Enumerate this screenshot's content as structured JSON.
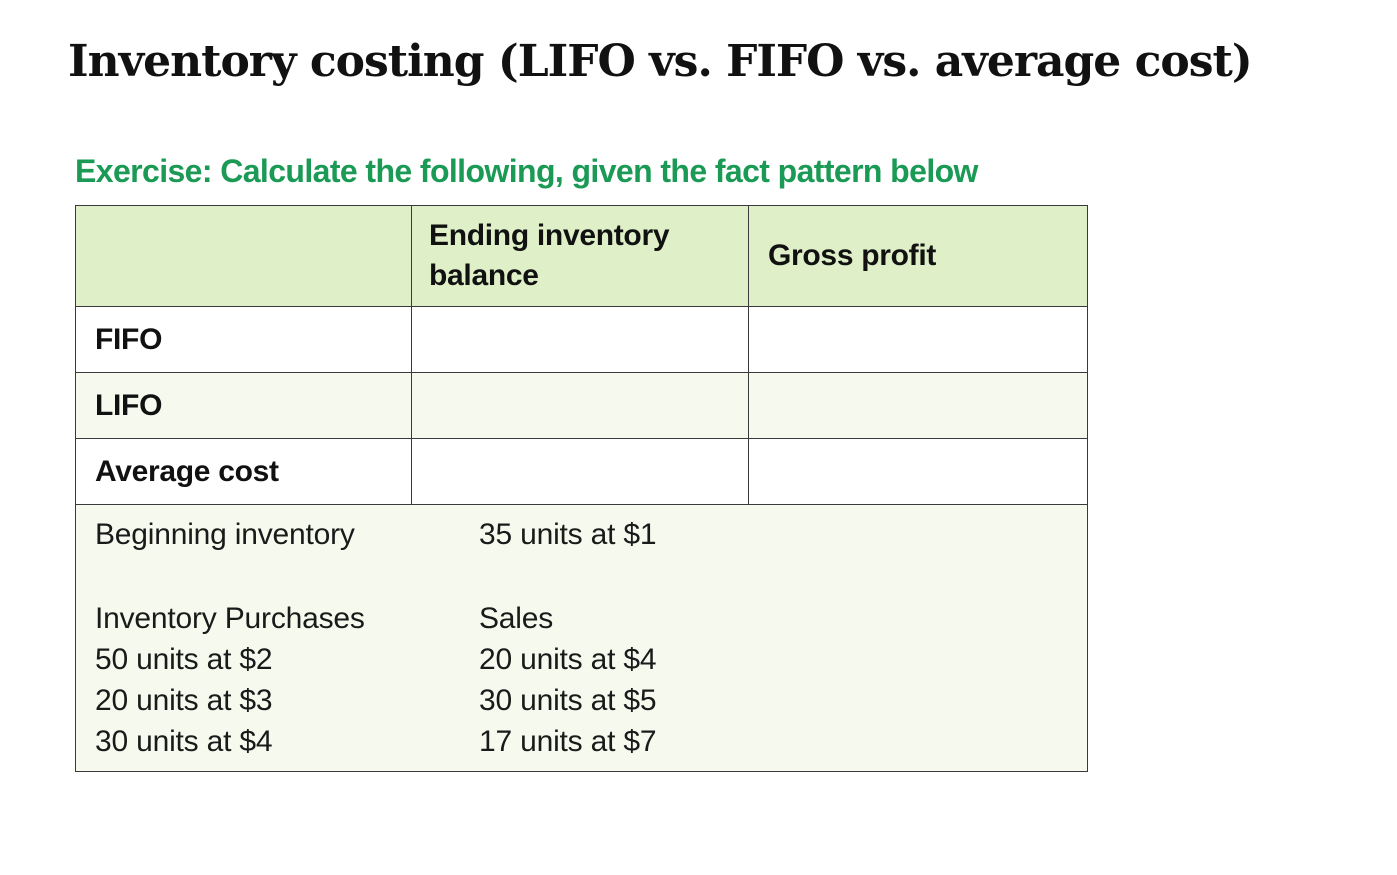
{
  "title": "Inventory costing (LIFO vs. FIFO vs. average cost)",
  "exercise_heading": "Exercise: Calculate the following, given the fact pattern below",
  "colors": {
    "heading_green": "#1a9a55",
    "header_fill": "#dff0c8",
    "alt_row_fill": "#f5f9ee",
    "border": "#3a3a3a"
  },
  "table": {
    "headers": {
      "first": "",
      "ending_inventory_line1": "Ending inventory",
      "ending_inventory_line2": "balance",
      "gross_profit": "Gross profit"
    },
    "rows": [
      {
        "label": "FIFO",
        "ending_inventory": "",
        "gross_profit": ""
      },
      {
        "label": "LIFO",
        "ending_inventory": "",
        "gross_profit": ""
      },
      {
        "label": "Average cost",
        "ending_inventory": "",
        "gross_profit": ""
      }
    ]
  },
  "facts": {
    "beginning_label": "Beginning inventory",
    "beginning_value": "35 units at $1",
    "purchases_label": "Inventory Purchases",
    "purchases": [
      "50 units at $2",
      "20 units at $3",
      "30 units at $4"
    ],
    "sales_label": "Sales",
    "sales": [
      "20 units at $4",
      "30 units at $5",
      "17 units at $7"
    ]
  }
}
